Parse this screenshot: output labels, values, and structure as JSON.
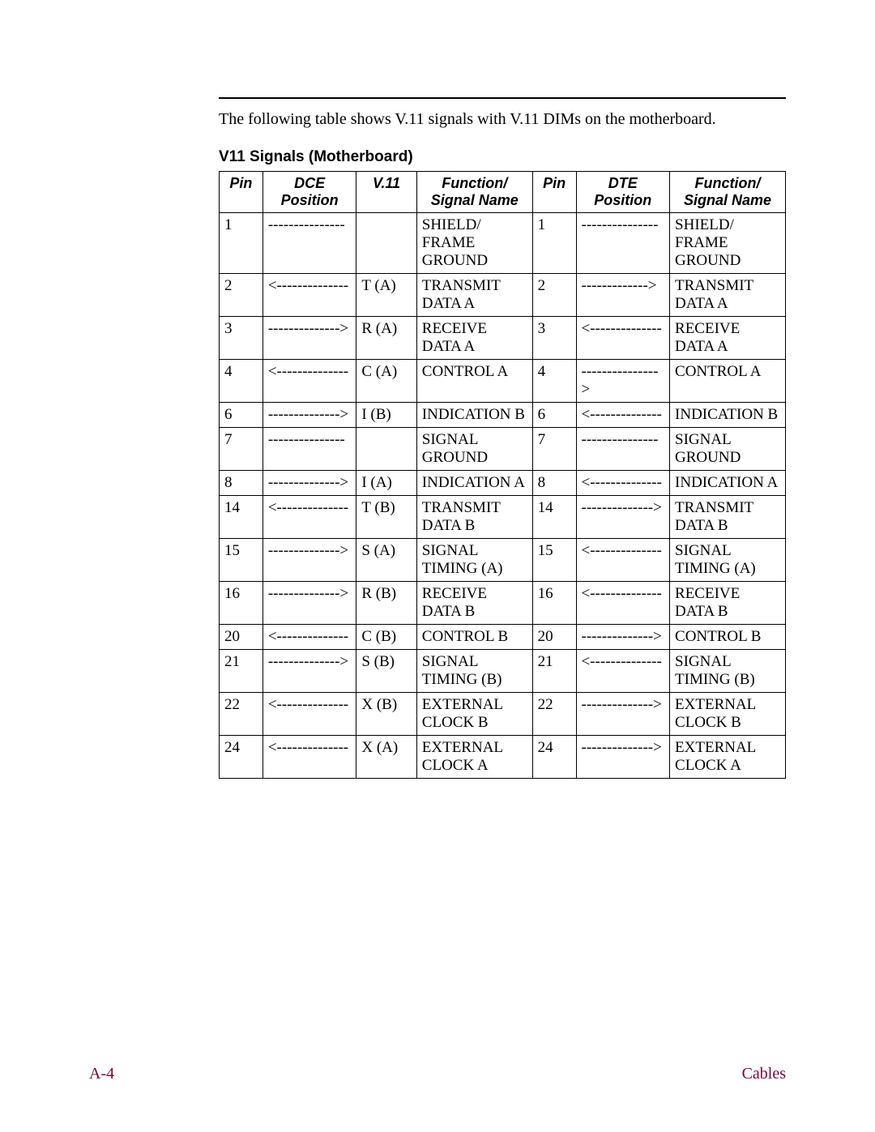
{
  "intro_text": "The following table shows V.11 signals with V.11 DIMs on the motherboard.",
  "table_title": "V11 Signals (Motherboard)",
  "columns": [
    "Pin",
    "DCE Position",
    "V.11",
    "Function/ Signal Name",
    "Pin",
    "DTE Position",
    "Function/ Signal Name"
  ],
  "rows": [
    {
      "pin1": "1",
      "dce": "---------------",
      "v11": "",
      "fn1": "SHIELD/ FRAME GROUND",
      "pin2": "1",
      "dte": "---------------",
      "fn2": "SHIELD/ FRAME GROUND"
    },
    {
      "pin1": "2",
      "dce": "<--------------",
      "v11": "T (A)",
      "fn1": "TRANSMIT DATA A",
      "pin2": "2",
      "dte": "------------->",
      "fn2": "TRANSMIT DATA A"
    },
    {
      "pin1": "3",
      "dce": "-------------->",
      "v11": "R (A)",
      "fn1": "RECEIVE DATA A",
      "pin2": "3",
      "dte": "<--------------",
      "fn2": "RECEIVE DATA A"
    },
    {
      "pin1": "4",
      "dce": "<--------------",
      "v11": "C (A)",
      "fn1": "CONTROL A",
      "pin2": "4",
      "dte": "--------------- >",
      "fn2": "CONTROL A"
    },
    {
      "pin1": "6",
      "dce": "-------------->",
      "v11": "I (B)",
      "fn1": "INDICATION B",
      "pin2": "6",
      "dte": "<--------------",
      "fn2": "INDICATION B"
    },
    {
      "pin1": "7",
      "dce": "---------------",
      "v11": "",
      "fn1": "SIGNAL GROUND",
      "pin2": "7",
      "dte": "---------------",
      "fn2": "SIGNAL GROUND"
    },
    {
      "pin1": "8",
      "dce": "-------------->",
      "v11": "I (A)",
      "fn1": "INDICATION A",
      "pin2": "8",
      "dte": "<--------------",
      "fn2": "INDICATION A"
    },
    {
      "pin1": "14",
      "dce": "<--------------",
      "v11": "T (B)",
      "fn1": "TRANSMIT DATA B",
      "pin2": "14",
      "dte": "-------------->",
      "fn2": "TRANSMIT DATA B"
    },
    {
      "pin1": "15",
      "dce": "-------------->",
      "v11": "S (A)",
      "fn1": "SIGNAL TIMING (A)",
      "pin2": "15",
      "dte": "<--------------",
      "fn2": "SIGNAL TIMING (A)"
    },
    {
      "pin1": "16",
      "dce": "-------------->",
      "v11": "R (B)",
      "fn1": "RECEIVE DATA B",
      "pin2": "16",
      "dte": "<--------------",
      "fn2": "RECEIVE DATA B"
    },
    {
      "pin1": "20",
      "dce": "<--------------",
      "v11": "C (B)",
      "fn1": "CONTROL B",
      "pin2": "20",
      "dte": "-------------->",
      "fn2": "CONTROL B"
    },
    {
      "pin1": "21",
      "dce": "-------------->",
      "v11": "S (B)",
      "fn1": "SIGNAL TIMING (B)",
      "pin2": "21",
      "dte": "<--------------",
      "fn2": "SIGNAL TIMING (B)"
    },
    {
      "pin1": "22",
      "dce": "<--------------",
      "v11": "X (B)",
      "fn1": "EXTERNAL CLOCK B",
      "pin2": "22",
      "dte": "-------------->",
      "fn2": "EXTERNAL CLOCK B"
    },
    {
      "pin1": "24",
      "dce": "<--------------",
      "v11": "X (A)",
      "fn1": "EXTERNAL CLOCK A",
      "pin2": "24",
      "dte": "-------------->",
      "fn2": "EXTERNAL CLOCK A"
    }
  ],
  "footer": {
    "left": "A-4",
    "right": "Cables"
  },
  "colors": {
    "footer": "#800040",
    "border": "#000000",
    "background": "#ffffff",
    "text": "#000000"
  }
}
